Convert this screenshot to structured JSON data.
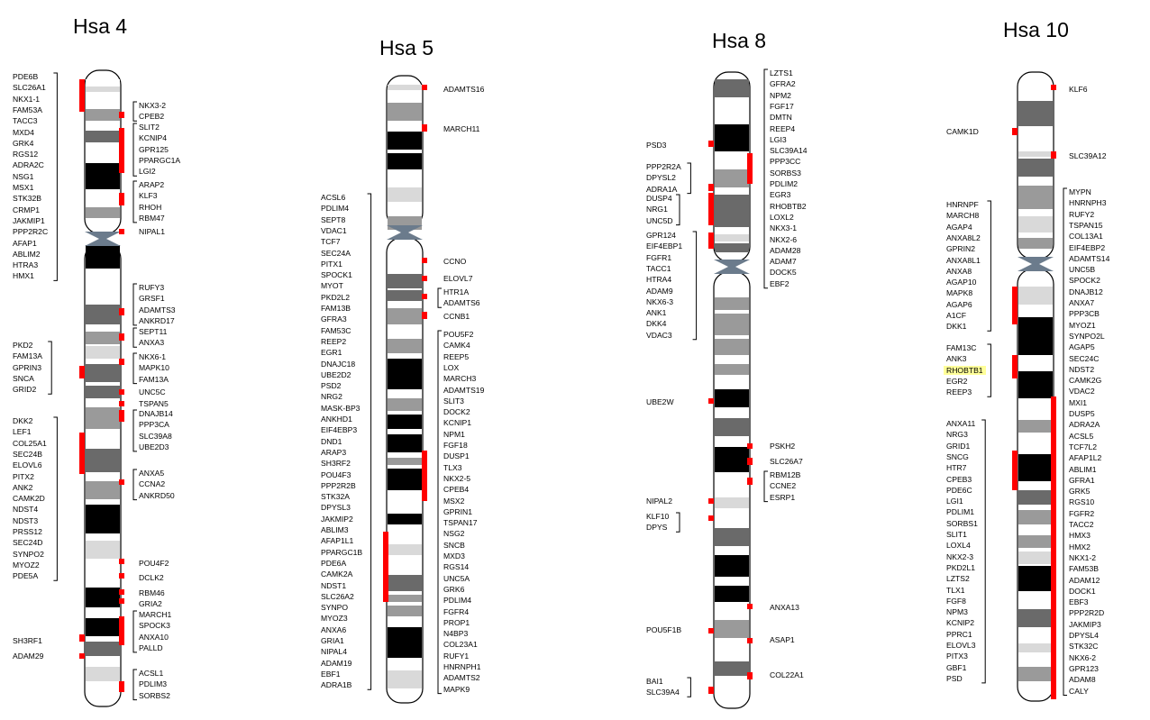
{
  "chromosomes": [
    {
      "id": "hsa4",
      "title": "Hsa 4",
      "gene_groups": [
        {
          "side": "left",
          "genes": [
            "PDE6B",
            "SLC26A1",
            "NKX1-1",
            "FAM53A",
            "TACC3",
            "MXD4",
            "GRK4",
            "RGS12",
            "ADRA2C",
            "NSG1",
            "MSX1",
            "STK32B",
            "CRMP1",
            "JAKMIP1",
            "PPP2R2C",
            "AFAP1",
            "ABLIM2",
            "HTRA3",
            "HMX1"
          ]
        },
        {
          "side": "right",
          "genes": [
            "NKX3-2",
            "CPEB2"
          ]
        },
        {
          "side": "right",
          "genes": [
            "SLIT2",
            "KCNIP4",
            "GPR125",
            "PPARGC1A",
            "LGI2"
          ]
        },
        {
          "side": "right",
          "genes": [
            "ARAP2",
            "KLF3",
            "RHOH",
            "RBM47"
          ]
        },
        {
          "side": "right",
          "genes": [
            "NIPAL1"
          ]
        },
        {
          "side": "right",
          "genes": [
            "RUFY3",
            "GRSF1",
            "ADAMTS3",
            "ANKRD17"
          ]
        },
        {
          "side": "right",
          "genes": [
            "SEPT11",
            "ANXA3"
          ]
        },
        {
          "side": "left",
          "genes": [
            "PKD2",
            "FAM13A",
            "GPRIN3",
            "SNCA",
            "GRID2"
          ]
        },
        {
          "side": "right",
          "genes": [
            "NKX6-1",
            "MAPK10",
            "FAM13A"
          ]
        },
        {
          "side": "right",
          "genes": [
            "UNC5C"
          ]
        },
        {
          "side": "right",
          "genes": [
            "TSPAN5"
          ]
        },
        {
          "side": "right",
          "genes": [
            "DNAJB14",
            "PPP3CA",
            "SLC39A8",
            "UBE2D3"
          ]
        },
        {
          "side": "left",
          "genes": [
            "DKK2",
            "LEF1",
            "COL25A1",
            "SEC24B",
            "ELOVL6",
            "PITX2",
            "ANK2",
            "CAMK2D",
            "NDST4",
            "NDST3",
            "PRSS12",
            "SEC24D",
            "SYNPO2",
            "MYOZ2",
            "PDE5A"
          ]
        },
        {
          "side": "right",
          "genes": [
            "ANXA5",
            "CCNA2",
            "ANKRD50"
          ]
        },
        {
          "side": "right",
          "genes": [
            "POU4F2"
          ]
        },
        {
          "side": "right",
          "genes": [
            "DCLK2"
          ]
        },
        {
          "side": "right",
          "genes": [
            "RBM46"
          ]
        },
        {
          "side": "right",
          "genes": [
            "GRIA2"
          ]
        },
        {
          "side": "right",
          "genes": [
            "MARCH1",
            "SPOCK3",
            "ANXA10",
            "PALLD"
          ]
        },
        {
          "side": "left",
          "genes": [
            "SH3RF1"
          ]
        },
        {
          "side": "left",
          "genes": [
            "ADAM29"
          ]
        },
        {
          "side": "right",
          "genes": [
            "ACSL1",
            "PDLIM3",
            "SORBS2"
          ]
        }
      ]
    },
    {
      "id": "hsa5",
      "title": "Hsa 5",
      "gene_groups": [
        {
          "side": "right",
          "genes": [
            "ADAMTS16"
          ]
        },
        {
          "side": "right",
          "genes": [
            "MARCH11"
          ]
        },
        {
          "side": "left",
          "genes": [
            "ACSL6",
            "PDLIM4",
            "SEPT8",
            "VDAC1",
            "TCF7",
            "SEC24A",
            "PITX1",
            "SPOCK1",
            "MYOT",
            "PKD2L2",
            "FAM13B",
            "GFRA3",
            "FAM53C",
            "REEP2",
            "EGR1",
            "DNAJC18",
            "UBE2D2",
            "PSD2",
            "NRG2",
            "MASK-BP3",
            "ANKHD1",
            "EIF4EBP3",
            "DND1",
            "ARAP3",
            "SH3RF2",
            "POU4F3",
            "PPP2R2B",
            "STK32A",
            "DPYSL3",
            "JAKMIP2",
            "ABLIM3",
            "AFAP1L1",
            "PPARGC1B",
            "PDE6A",
            "CAMK2A",
            "NDST1",
            "SLC26A2",
            "SYNPO",
            "MYOZ3",
            "ANXA6",
            "GRIA1",
            "NIPAL4",
            "ADAM19",
            "EBF1",
            "ADRA1B"
          ]
        },
        {
          "side": "right",
          "genes": [
            "CCNO"
          ]
        },
        {
          "side": "right",
          "genes": [
            "ELOVL7"
          ]
        },
        {
          "side": "right",
          "genes": [
            "HTR1A",
            "ADAMTS6"
          ]
        },
        {
          "side": "right",
          "genes": [
            "CCNB1"
          ]
        },
        {
          "side": "right",
          "genes": [
            "POU5F2",
            "CAMK4",
            "REEP5",
            "LOX",
            "MARCH3",
            "ADAMTS19",
            "SLIT3",
            "DOCK2",
            "KCNIP1",
            "NPM1",
            "FGF18",
            "DUSP1",
            "TLX3",
            "NKX2-5",
            "CPEB4",
            "MSX2",
            "GPRIN1",
            "TSPAN17",
            "NSG2",
            "SNCB",
            "MXD3",
            "RGS14",
            "UNC5A",
            "GRK6",
            "PDLIM4",
            "FGFR4",
            "PROP1",
            "N4BP3",
            "COL23A1",
            "RUFY1",
            "HNRNPH1",
            "ADAMTS2",
            "MAPK9"
          ]
        }
      ]
    },
    {
      "id": "hsa8",
      "title": "Hsa 8",
      "gene_groups": [
        {
          "side": "right",
          "genes": [
            "LZTS1",
            "GFRA2",
            "NPM2",
            "FGF17",
            "DMTN",
            "REEP4",
            "LGI3",
            "SLC39A14",
            "PPP3CC",
            "SORBS3",
            "PDLIM2",
            "EGR3",
            "RHOBTB2",
            "LOXL2",
            "NKX3-1",
            "NKX2-6",
            "ADAM28",
            "ADAM7",
            "DOCK5",
            "EBF2"
          ]
        },
        {
          "side": "left",
          "genes": [
            "PSD3"
          ]
        },
        {
          "side": "left",
          "genes": [
            "PPP2R2A",
            "DPYSL2",
            "ADRA1A"
          ]
        },
        {
          "side": "left",
          "genes": [
            "DUSP4",
            "NRG1",
            "UNC5D"
          ]
        },
        {
          "side": "left",
          "genes": [
            "GPR124",
            "EIF4EBP1",
            "FGFR1",
            "TACC1",
            "HTRA4",
            "ADAM9",
            "NKX6-3",
            "ANK1",
            "DKK4",
            "VDAC3"
          ]
        },
        {
          "side": "left",
          "genes": [
            "UBE2W"
          ]
        },
        {
          "side": "right",
          "genes": [
            "PSKH2"
          ]
        },
        {
          "side": "right",
          "genes": [
            "SLC26A7"
          ]
        },
        {
          "side": "right",
          "genes": [
            "RBM12B",
            "CCNE2",
            "ESRP1"
          ]
        },
        {
          "side": "left",
          "genes": [
            "NIPAL2"
          ]
        },
        {
          "side": "left",
          "genes": [
            "KLF10",
            "DPYS"
          ]
        },
        {
          "side": "right",
          "genes": [
            "ANXA13"
          ]
        },
        {
          "side": "left",
          "genes": [
            "POU5F1B"
          ]
        },
        {
          "side": "right",
          "genes": [
            "ASAP1"
          ]
        },
        {
          "side": "right",
          "genes": [
            "COL22A1"
          ]
        },
        {
          "side": "left",
          "genes": [
            "BAI1",
            "SLC39A4"
          ]
        }
      ]
    },
    {
      "id": "hsa10",
      "title": "Hsa 10",
      "gene_groups": [
        {
          "side": "right",
          "genes": [
            "KLF6"
          ]
        },
        {
          "side": "left",
          "genes": [
            "CAMK1D"
          ]
        },
        {
          "side": "right",
          "genes": [
            "SLC39A12"
          ]
        },
        {
          "side": "left",
          "genes": [
            "HNRNPF",
            "MARCH8",
            "AGAP4",
            "ANXA8L2",
            "GPRIN2",
            "ANXA8L1",
            "ANXA8",
            "AGAP10",
            "MAPK8",
            "AGAP6",
            "A1CF",
            "DKK1"
          ]
        },
        {
          "side": "right",
          "genes": [
            "MYPN",
            "HNRNPH3",
            "RUFY2",
            "TSPAN15",
            "COL13A1",
            "EIF4EBP2",
            "ADAMTS14",
            "UNC5B",
            "SPOCK2",
            "DNAJB12",
            "ANXA7",
            "PPP3CB",
            "MYOZ1",
            "SYNPO2L",
            "AGAP5",
            "SEC24C",
            "NDST2",
            "CAMK2G",
            "VDAC2",
            "MXI1",
            "DUSP5",
            "ADRA2A",
            "ACSL5",
            "TCF7L2",
            "AFAP1L2",
            "ABLIM1",
            "GFRA1",
            "GRK5",
            "RGS10",
            "FGFR2",
            "TACC2",
            "HMX3",
            "HMX2",
            "NKX1-2",
            "FAM53B",
            "ADAM12",
            "DOCK1",
            "EBF3",
            "PPP2R2D",
            "JAKMIP3",
            "DPYSL4",
            "STK32C",
            "NKX6-2",
            "GPR123",
            "ADAM8",
            "CALY"
          ]
        },
        {
          "side": "left",
          "genes": [
            "FAM13C",
            "ANK3",
            "RHOBTB1",
            "EGR2",
            "REEP3"
          ],
          "highlight": "RHOBTB1"
        },
        {
          "side": "left",
          "genes": [
            "ANXA11",
            "NRG3",
            "GRID1",
            "SNCG",
            "HTR7",
            "CPEB3",
            "PDE6C",
            "LGI1",
            "PDLIM1",
            "SORBS1",
            "SLIT1",
            "LOXL4",
            "NKX2-3",
            "PKD2L1",
            "LZTS2",
            "TLX1",
            "FGF8",
            "NPM3",
            "KCNIP2",
            "PPRC1",
            "ELOVL3",
            "PITX3",
            "GBF1",
            "PSD"
          ]
        }
      ]
    }
  ],
  "colors": {
    "mark": "#ff0000",
    "highlight": "#ffff99",
    "centromere": "#6b7b8c",
    "outline": "#000000"
  }
}
